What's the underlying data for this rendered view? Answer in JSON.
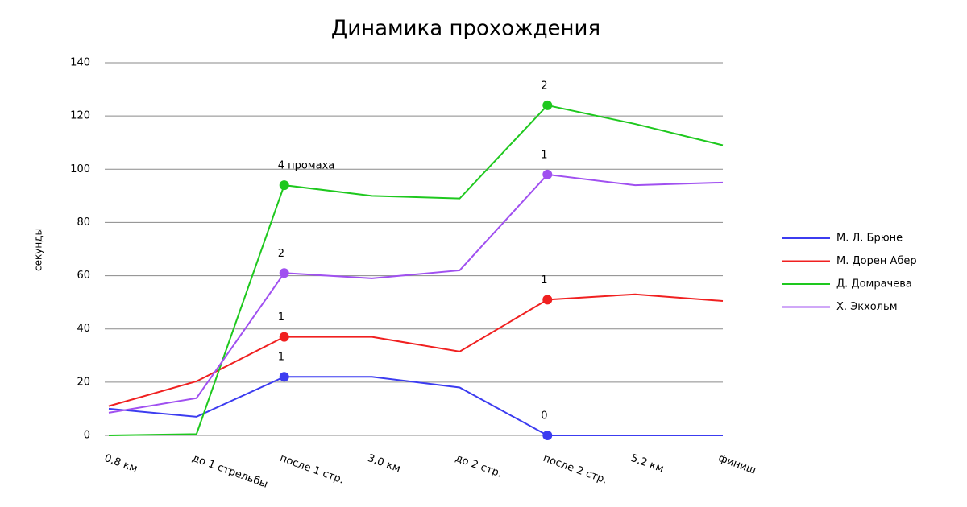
{
  "chart_data": {
    "type": "line",
    "title": "Динамика прохождения",
    "y_label": "секунды",
    "categories": [
      "0,8 км",
      "до 1 стрельбы",
      "после 1 стр.",
      "3,0 км",
      "до 2 стр.",
      "после 2 стр.",
      "5,2 км",
      "финиш"
    ],
    "series": [
      {
        "name": "М. Л. Брюне",
        "color": "#3c3cf0",
        "values": [
          10,
          7,
          22,
          22,
          18,
          0,
          0,
          0
        ],
        "annotations": [
          null,
          null,
          "1",
          null,
          null,
          "0",
          null,
          null
        ]
      },
      {
        "name": "М. Дорен Абер",
        "color": "#f02020",
        "values": [
          11,
          20.3,
          37,
          37,
          31.5,
          51,
          53,
          50.5
        ],
        "annotations": [
          null,
          null,
          "1",
          null,
          null,
          "1",
          null,
          null
        ]
      },
      {
        "name": "Д. Домрачева",
        "color": "#1ec81e",
        "values": [
          0,
          0.5,
          94,
          90,
          89,
          124,
          117,
          109
        ],
        "annotations": [
          null,
          null,
          "4 промаха",
          null,
          null,
          "2",
          null,
          null
        ]
      },
      {
        "name": "Х. Экхольм",
        "color": "#a050f0",
        "values": [
          8.5,
          14,
          61,
          59,
          62,
          98,
          94,
          95
        ],
        "annotations": [
          null,
          null,
          "2",
          null,
          null,
          "1",
          null,
          null
        ]
      }
    ],
    "ylim": [
      0,
      140
    ],
    "yticks": [
      0,
      20,
      40,
      60,
      80,
      100,
      120,
      140
    ],
    "grid": true,
    "legend": "right"
  }
}
